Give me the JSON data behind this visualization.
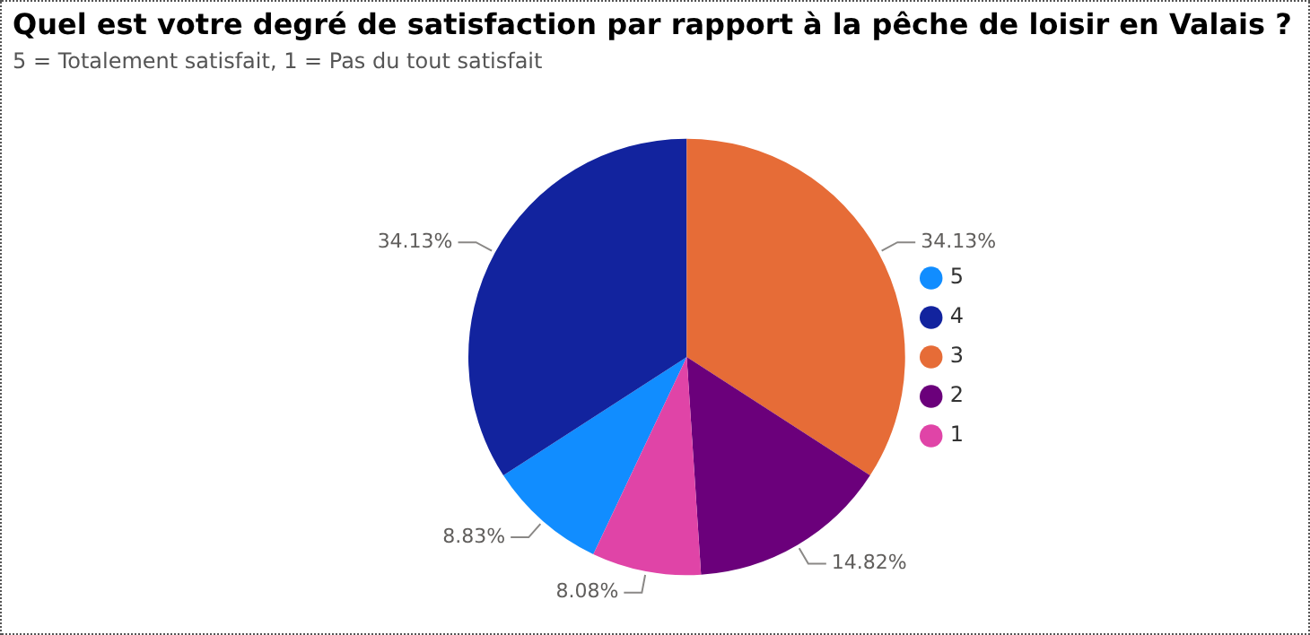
{
  "chart_data": {
    "type": "pie",
    "title": "Quel est votre degré de satisfaction par rapport à la pêche de loisir en Valais ?",
    "subtitle": "5 = Totalement satisfait, 1 = Pas du tout satisfait",
    "categories": [
      "5",
      "4",
      "3",
      "2",
      "1"
    ],
    "values": [
      8.83,
      34.13,
      34.13,
      14.82,
      8.08
    ],
    "colors": [
      "#118dff",
      "#12239e",
      "#e66c37",
      "#6b007b",
      "#e044a7"
    ],
    "value_labels": [
      "8.83%",
      "34.13%",
      "34.13%",
      "14.82%",
      "8.08%"
    ],
    "legend": "right"
  }
}
